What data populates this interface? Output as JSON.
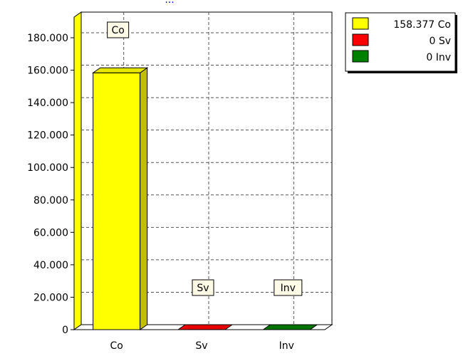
{
  "chart_data": {
    "type": "bar",
    "title": "...",
    "categories": [
      "Co",
      "Sv",
      "Inv"
    ],
    "values": [
      158.377,
      0,
      0
    ],
    "colors": [
      "#ffff00",
      "#ff0000",
      "#008000"
    ],
    "ylim": [
      0,
      180
    ],
    "yticks": [
      0,
      20,
      40,
      60,
      80,
      100,
      120,
      140,
      160,
      180
    ],
    "ytick_labels": [
      "0",
      "20.000",
      "40.000",
      "60.000",
      "80.000",
      "100.000",
      "120.000",
      "140.000",
      "160.000",
      "180.000"
    ],
    "grid": true,
    "callouts": [
      "Co",
      "Sv",
      "Inv"
    ],
    "legend": {
      "placement": "top-right",
      "entries": [
        {
          "label": "158.377 Co",
          "color": "#ffff00"
        },
        {
          "label": "0 Sv",
          "color": "#ff0000"
        },
        {
          "label": "0 Inv",
          "color": "#008000"
        }
      ]
    }
  }
}
